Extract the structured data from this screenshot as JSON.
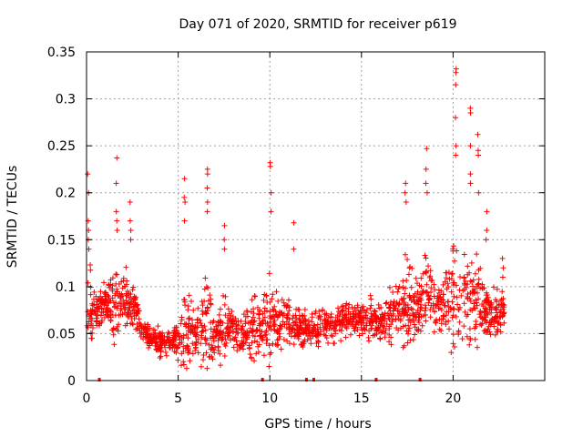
{
  "chart_data": {
    "type": "scatter",
    "title": "Day 071 of 2020, SRMTID for receiver p619",
    "xlabel": "GPS time / hours",
    "ylabel": "SRMTID / TECUs",
    "xlim": [
      0,
      25
    ],
    "ylim": [
      0,
      0.35
    ],
    "xticks": [
      0,
      5,
      10,
      15,
      20
    ],
    "xtick_labels": [
      "0",
      "5",
      "10",
      "15",
      "20"
    ],
    "yticks": [
      0,
      0.05,
      0.1,
      0.15,
      0.2,
      0.25,
      0.3,
      0.35
    ],
    "ytick_labels": [
      "0",
      "0.05",
      "0.1",
      "0.15",
      "0.2",
      "0.25",
      "0.3",
      "0.35"
    ],
    "grid": true,
    "marker": "+",
    "color": "#ff0000",
    "gap_markers_x": [
      0.7,
      9.6,
      12.0,
      12.4,
      15.8,
      18.2
    ],
    "envelope": {
      "description": "typical SRMTID level (median) and upper spread across the day",
      "hours": [
        0.0,
        0.5,
        1.0,
        1.5,
        2.0,
        2.5,
        3.0,
        3.5,
        4.0,
        4.5,
        5.0,
        5.5,
        6.0,
        6.5,
        7.0,
        7.5,
        8.0,
        8.5,
        9.0,
        9.5,
        10.0,
        10.5,
        11.0,
        11.5,
        12.0,
        12.5,
        13.0,
        13.5,
        14.0,
        14.5,
        15.0,
        15.5,
        16.0,
        16.5,
        17.0,
        17.5,
        18.0,
        18.5,
        19.0,
        19.5,
        20.0,
        20.5,
        21.0,
        21.5,
        22.0,
        22.5,
        22.8
      ],
      "median": [
        0.08,
        0.075,
        0.085,
        0.08,
        0.09,
        0.085,
        0.055,
        0.045,
        0.04,
        0.04,
        0.045,
        0.055,
        0.05,
        0.055,
        0.05,
        0.055,
        0.055,
        0.05,
        0.055,
        0.06,
        0.065,
        0.06,
        0.065,
        0.055,
        0.055,
        0.055,
        0.06,
        0.06,
        0.065,
        0.065,
        0.065,
        0.065,
        0.06,
        0.065,
        0.075,
        0.08,
        0.08,
        0.085,
        0.075,
        0.08,
        0.09,
        0.085,
        0.09,
        0.08,
        0.07,
        0.065,
        0.08
      ],
      "upper": [
        0.18,
        0.12,
        0.12,
        0.16,
        0.16,
        0.14,
        0.08,
        0.07,
        0.07,
        0.065,
        0.08,
        0.15,
        0.08,
        0.17,
        0.09,
        0.12,
        0.1,
        0.1,
        0.13,
        0.12,
        0.16,
        0.12,
        0.11,
        0.1,
        0.1,
        0.1,
        0.1,
        0.1,
        0.1,
        0.1,
        0.1,
        0.11,
        0.1,
        0.12,
        0.15,
        0.18,
        0.18,
        0.2,
        0.15,
        0.16,
        0.22,
        0.2,
        0.2,
        0.16,
        0.12,
        0.11,
        0.11
      ]
    },
    "spikes": [
      {
        "hour": 0.1,
        "values": [
          0.22,
          0.2,
          0.17,
          0.16,
          0.15,
          0.14
        ]
      },
      {
        "hour": 1.65,
        "values": [
          0.237,
          0.21,
          0.18,
          0.17,
          0.16
        ]
      },
      {
        "hour": 2.4,
        "values": [
          0.19,
          0.17,
          0.16,
          0.15
        ]
      },
      {
        "hour": 5.35,
        "values": [
          0.215,
          0.195,
          0.19,
          0.17
        ]
      },
      {
        "hour": 6.6,
        "values": [
          0.225,
          0.22,
          0.205,
          0.19,
          0.18
        ]
      },
      {
        "hour": 7.5,
        "values": [
          0.165,
          0.15,
          0.14
        ]
      },
      {
        "hour": 10.05,
        "values": [
          0.232,
          0.228,
          0.2,
          0.18
        ]
      },
      {
        "hour": 11.3,
        "values": [
          0.168,
          0.14
        ]
      },
      {
        "hour": 17.4,
        "values": [
          0.21,
          0.2,
          0.19
        ]
      },
      {
        "hour": 18.55,
        "values": [
          0.247,
          0.225,
          0.21,
          0.2
        ]
      },
      {
        "hour": 20.15,
        "values": [
          0.332,
          0.328,
          0.315,
          0.28,
          0.25,
          0.24
        ]
      },
      {
        "hour": 20.95,
        "values": [
          0.29,
          0.285,
          0.25,
          0.22,
          0.21
        ]
      },
      {
        "hour": 21.35,
        "values": [
          0.262,
          0.245,
          0.24,
          0.2
        ]
      },
      {
        "hour": 21.8,
        "values": [
          0.18,
          0.16,
          0.15
        ]
      },
      {
        "hour": 22.7,
        "values": [
          0.13,
          0.12,
          0.11
        ]
      }
    ],
    "sample_count": 1800
  }
}
